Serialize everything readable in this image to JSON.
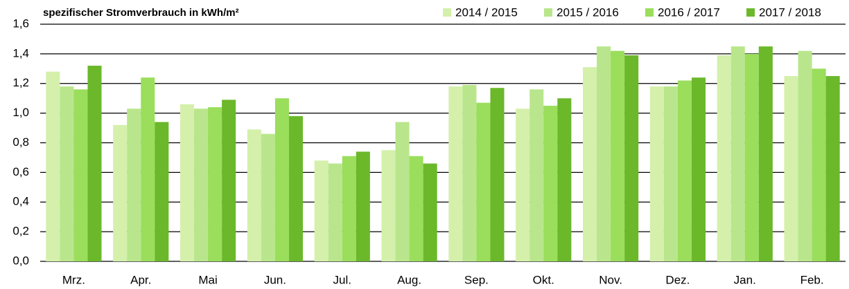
{
  "chart_data": {
    "type": "bar",
    "title": "spezifischer Stromverbrauch in kWh/m²",
    "categories": [
      "Mrz.",
      "Apr.",
      "Mai",
      "Jun.",
      "Jul.",
      "Aug.",
      "Sep.",
      "Okt.",
      "Nov.",
      "Dez.",
      "Jan.",
      "Feb."
    ],
    "series": [
      {
        "name": "2014 / 2015",
        "color": "#d4f0ab",
        "values": [
          1.28,
          0.92,
          1.06,
          0.89,
          0.68,
          0.75,
          1.18,
          1.03,
          1.31,
          1.18,
          1.39,
          1.25
        ]
      },
      {
        "name": "2015 / 2016",
        "color": "#b9e68c",
        "values": [
          1.18,
          1.03,
          1.03,
          0.86,
          0.66,
          0.94,
          1.19,
          1.16,
          1.45,
          1.18,
          1.45,
          1.42
        ]
      },
      {
        "name": "2016 / 2017",
        "color": "#9ade5c",
        "values": [
          1.16,
          1.24,
          1.04,
          1.1,
          0.71,
          0.71,
          1.07,
          1.05,
          1.42,
          1.22,
          1.4,
          1.3
        ]
      },
      {
        "name": "2017 / 2018",
        "color": "#6bb82b",
        "values": [
          1.32,
          0.94,
          1.09,
          0.98,
          0.74,
          0.66,
          1.17,
          1.1,
          1.39,
          1.24,
          1.45,
          1.25
        ]
      }
    ],
    "ylim": [
      0,
      1.6
    ],
    "yticks": [
      {
        "value": 0,
        "label": "0,0"
      },
      {
        "value": 0.2,
        "label": "0,2"
      },
      {
        "value": 0.4,
        "label": "0,4"
      },
      {
        "value": 0.6,
        "label": "0,6"
      },
      {
        "value": 0.8,
        "label": "0,8"
      },
      {
        "value": 1.0,
        "label": "1,0"
      },
      {
        "value": 1.2,
        "label": "1,2"
      },
      {
        "value": 1.4,
        "label": "1,4"
      },
      {
        "value": 1.6,
        "label": "1,6"
      }
    ],
    "grid": true,
    "legend": "top-right"
  }
}
